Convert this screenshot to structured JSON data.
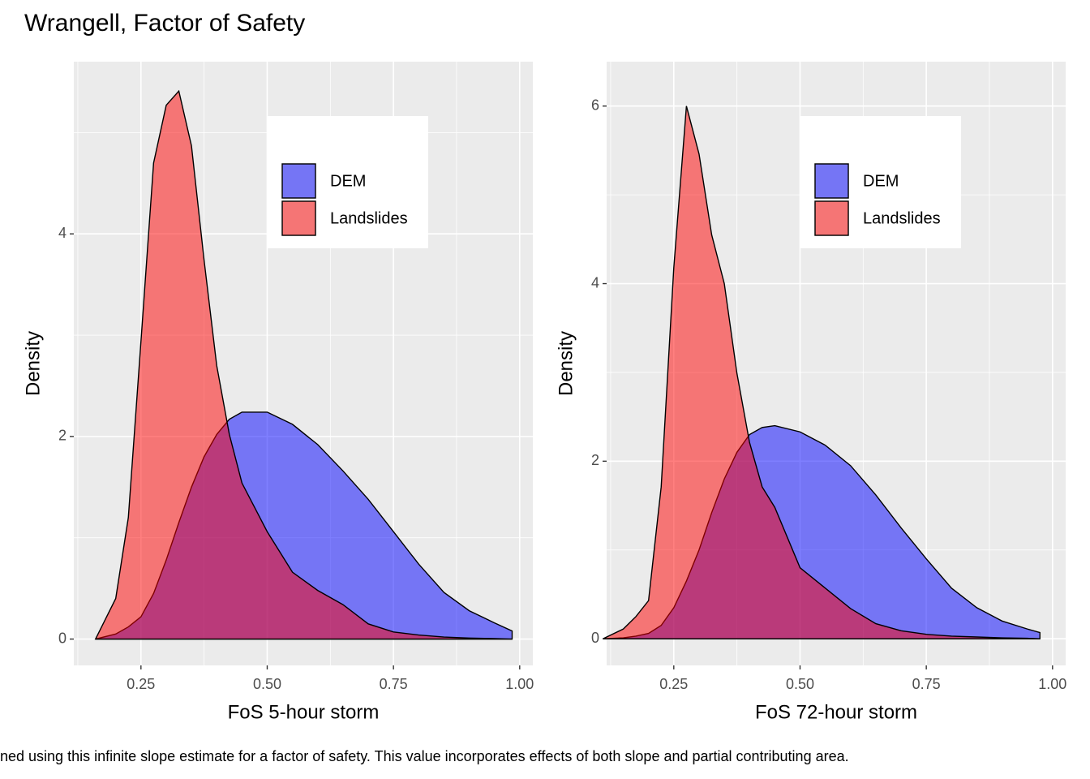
{
  "title": "Wrangell, Factor of Safety",
  "caption": "ned using this infinite slope estimate for a factor of safety. This value incorporates effects of both slope and partial contributing area.",
  "chart_data": [
    {
      "type": "density",
      "xlabel": "FoS 5-hour storm",
      "ylabel": "Density",
      "x": [
        0.16,
        0.2,
        0.225,
        0.25,
        0.275,
        0.3,
        0.325,
        0.35,
        0.375,
        0.4,
        0.425,
        0.45,
        0.5,
        0.55,
        0.6,
        0.65,
        0.7,
        0.75,
        0.8,
        0.85,
        0.9,
        0.95,
        0.985
      ],
      "series": [
        {
          "name": "DEM",
          "color": "#0000ff",
          "values": [
            0,
            0.05,
            0.12,
            0.22,
            0.45,
            0.78,
            1.15,
            1.5,
            1.8,
            2.02,
            2.17,
            2.24,
            2.24,
            2.12,
            1.92,
            1.66,
            1.38,
            1.06,
            0.74,
            0.46,
            0.28,
            0.16,
            0.08
          ]
        },
        {
          "name": "Landslides",
          "color": "#ff0000",
          "values": [
            0,
            0.4,
            1.2,
            2.94,
            4.7,
            5.27,
            5.41,
            4.87,
            3.74,
            2.7,
            2.02,
            1.54,
            1.06,
            0.66,
            0.48,
            0.34,
            0.15,
            0.07,
            0.04,
            0.02,
            0.01,
            0.005,
            0
          ]
        }
      ],
      "alpha": 0.5,
      "xlim": [
        0.117,
        1.026
      ],
      "ylim": [
        -0.26,
        5.7
      ],
      "xticks": [
        0.25,
        {
          "value": 0.5,
          "label": "0.50"
        },
        0.75,
        {
          "value": 1,
          "label": "1.00"
        }
      ],
      "yticks": [
        0,
        2,
        4
      ],
      "grid": true,
      "legend_position": "top-right"
    },
    {
      "type": "density",
      "xlabel": "FoS 72-hour storm",
      "ylabel": "Density",
      "x": [
        0.11,
        0.15,
        0.175,
        0.2,
        0.225,
        0.25,
        0.275,
        0.3,
        0.325,
        0.35,
        0.375,
        0.4,
        0.425,
        0.45,
        0.5,
        0.55,
        0.6,
        0.65,
        0.7,
        0.75,
        0.8,
        0.85,
        0.9,
        0.95,
        0.975
      ],
      "series": [
        {
          "name": "DEM",
          "color": "#0000ff",
          "values": [
            0,
            0.01,
            0.03,
            0.06,
            0.15,
            0.35,
            0.65,
            1.0,
            1.42,
            1.8,
            2.1,
            2.3,
            2.38,
            2.4,
            2.33,
            2.18,
            1.95,
            1.62,
            1.25,
            0.9,
            0.57,
            0.35,
            0.2,
            0.11,
            0.07
          ]
        },
        {
          "name": "Landslides",
          "color": "#ff0000",
          "values": [
            0,
            0.11,
            0.25,
            0.43,
            1.71,
            4.18,
            6.0,
            5.46,
            4.55,
            4.0,
            2.99,
            2.21,
            1.71,
            1.48,
            0.8,
            0.57,
            0.34,
            0.17,
            0.09,
            0.05,
            0.03,
            0.02,
            0.01,
            0.005,
            0
          ]
        }
      ],
      "alpha": 0.5,
      "xlim": [
        0.117,
        1.026
      ],
      "ylim": [
        -0.3,
        6.5
      ],
      "xticks": [
        0.25,
        {
          "value": 0.5,
          "label": "0.50"
        },
        0.75,
        {
          "value": 1,
          "label": "1.00"
        }
      ],
      "yticks": [
        0,
        2,
        4,
        6
      ],
      "grid": true,
      "legend_position": "top-right"
    }
  ]
}
